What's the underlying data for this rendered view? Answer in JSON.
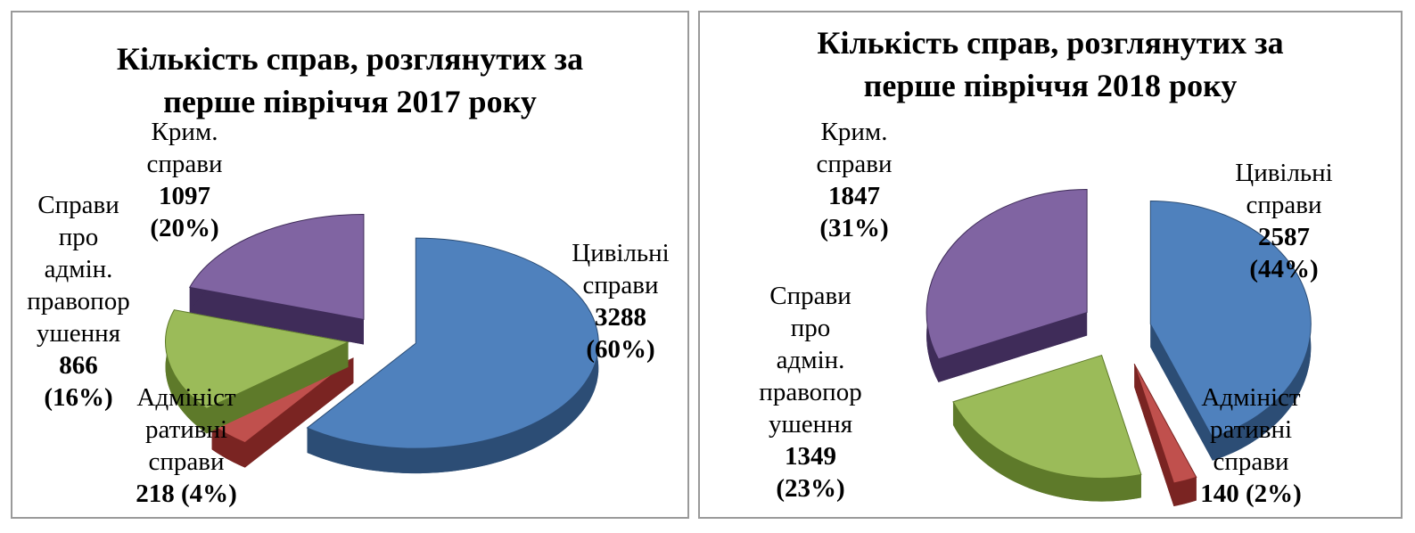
{
  "chart_data": [
    {
      "type": "pie",
      "title_lines": [
        "Кількість справ, розглянутих за",
        "перше півріччя  2017 року"
      ],
      "slices": [
        {
          "key": "civil",
          "name_lines": [
            "Цивільні",
            "справи"
          ],
          "value": 3288,
          "pct": "(60%)",
          "color": "#4F81BD",
          "dark": "#2C4D75"
        },
        {
          "key": "admin",
          "name_lines": [
            "Адмініст",
            "ративні",
            "справи"
          ],
          "value": 218,
          "pct": "(4%)",
          "color": "#C0504D",
          "dark": "#7A2422"
        },
        {
          "key": "offense",
          "name_lines": [
            "Справи",
            "про",
            "адмін.",
            "правопор",
            "ушення"
          ],
          "value": 866,
          "pct": "(16%)",
          "color": "#9BBB59",
          "dark": "#5E7A2A"
        },
        {
          "key": "crim",
          "name_lines": [
            "Крим.",
            "справи"
          ],
          "value": 1097,
          "pct": "(20%)",
          "color": "#8064A2",
          "dark": "#3F2C59"
        }
      ]
    },
    {
      "type": "pie",
      "title_lines": [
        "Кількість справ, розглянутих за",
        "перше півріччя 2018 року"
      ],
      "slices": [
        {
          "key": "civil",
          "name_lines": [
            "Цивільні",
            "справи"
          ],
          "value": 2587,
          "pct": "(44%)",
          "color": "#4F81BD",
          "dark": "#2C4D75"
        },
        {
          "key": "admin",
          "name_lines": [
            "Адмініст",
            "ративні",
            "справи"
          ],
          "value": 140,
          "pct": "(2%)",
          "color": "#C0504D",
          "dark": "#7A2422"
        },
        {
          "key": "offense",
          "name_lines": [
            "Справи",
            "про",
            "адмін.",
            "правопор",
            "ушення"
          ],
          "value": 1349,
          "pct": "(23%)",
          "color": "#9BBB59",
          "dark": "#5E7A2A"
        },
        {
          "key": "crim",
          "name_lines": [
            "Крим.",
            "справи"
          ],
          "value": 1847,
          "pct": "(31%)",
          "color": "#8064A2",
          "dark": "#3F2C59"
        }
      ]
    }
  ]
}
